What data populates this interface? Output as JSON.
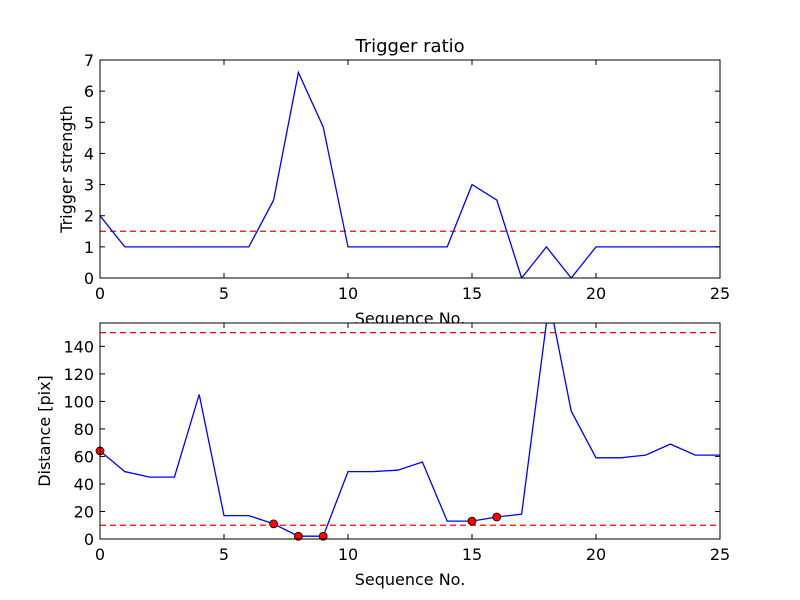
{
  "chart_data": [
    {
      "type": "line",
      "title": "Trigger ratio",
      "xlabel": "Sequence No.",
      "ylabel": "Trigger strength",
      "xlim": [
        0,
        25
      ],
      "ylim": [
        0,
        7
      ],
      "xticks": [
        0,
        5,
        10,
        15,
        20,
        25
      ],
      "yticks": [
        0,
        1,
        2,
        3,
        4,
        5,
        6,
        7
      ],
      "grid": false,
      "series": [
        {
          "color": "#0000ff",
          "x": [
            0,
            1,
            2,
            3,
            4,
            5,
            6,
            7,
            8,
            9,
            10,
            11,
            12,
            13,
            14,
            15,
            16,
            17,
            18,
            19,
            20,
            21,
            22,
            23,
            24,
            25
          ],
          "y": [
            2.0,
            1.0,
            1.0,
            1.0,
            1.0,
            1.0,
            1.0,
            2.5,
            6.6,
            4.85,
            1.0,
            1.0,
            1.0,
            1.0,
            1.0,
            3.0,
            2.5,
            0.0,
            1.0,
            0.0,
            1.0,
            1.0,
            1.0,
            1.0,
            1.0,
            1.0
          ]
        }
      ],
      "thresholds": [
        {
          "y": 1.5,
          "color": "#ff0000",
          "style": "dashed"
        }
      ]
    },
    {
      "type": "line",
      "title": "",
      "xlabel": "Sequence No.",
      "ylabel": "Distance [pix]",
      "xlim": [
        0,
        25
      ],
      "ylim": [
        0,
        157
      ],
      "xticks": [
        0,
        5,
        10,
        15,
        20,
        25
      ],
      "yticks": [
        0,
        20,
        40,
        60,
        80,
        100,
        120,
        140
      ],
      "grid": false,
      "series": [
        {
          "color": "#0000ff",
          "x": [
            0,
            1,
            2,
            3,
            4,
            5,
            6,
            7,
            8,
            9,
            10,
            11,
            12,
            13,
            14,
            15,
            16,
            17,
            18,
            18.3,
            19,
            20,
            21,
            22,
            23,
            24,
            25
          ],
          "y": [
            64,
            49,
            45,
            45,
            105,
            17,
            17,
            11,
            2,
            2,
            49,
            49,
            50,
            56,
            13,
            13,
            16,
            18,
            157,
            157,
            93,
            59,
            59,
            61,
            69,
            61,
            61
          ]
        }
      ],
      "markers": {
        "color": "#ff0000",
        "x": [
          0,
          7,
          8,
          9,
          15,
          16
        ],
        "y": [
          64,
          11,
          2,
          2,
          13,
          16
        ]
      },
      "thresholds": [
        {
          "y": 150,
          "color": "#ff0000",
          "style": "dashed"
        },
        {
          "y": 10,
          "color": "#ff0000",
          "style": "dashed"
        }
      ]
    }
  ]
}
